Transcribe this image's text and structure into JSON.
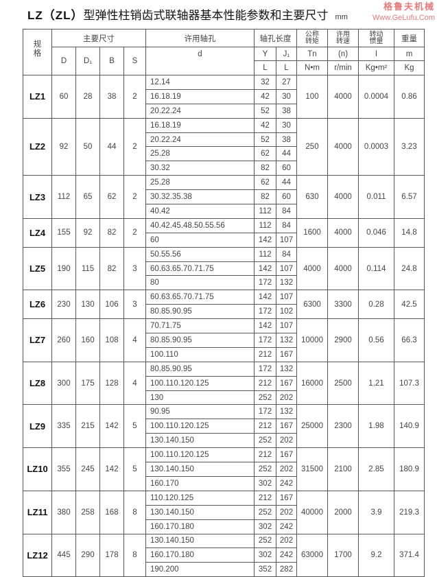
{
  "title": {
    "prefix": "LZ（ZL）",
    "main": "型弹性柱销齿式联轴器基本性能参数和主要尺寸",
    "unit": "mm"
  },
  "header": {
    "model": "规格",
    "main_dims": "主要尺寸",
    "bore": "许用轴孔",
    "bore_length": "轴孔长度",
    "torque": "公称转矩",
    "speed": "许用转速",
    "inertia": "转动惯量",
    "weight": "重量",
    "D": "D",
    "D1": "D₁",
    "B": "B",
    "S": "S",
    "d": "d",
    "Y": "Y",
    "J1": "J₁",
    "L_Y": "L",
    "L_J": "L",
    "Tn": "Tn",
    "n": "(n)",
    "I": "I",
    "m": "m",
    "Tn_unit": "N•m",
    "n_unit": "r/min",
    "I_unit": "Kg•m²",
    "m_unit": "Kg"
  },
  "rows": [
    {
      "model": "LZ1",
      "D": "60",
      "D1": "28",
      "B": "38",
      "S": "2",
      "Tn": "100",
      "n": "4000",
      "I": "0.0004",
      "m": "0.86",
      "bores": [
        [
          "12.14",
          "32",
          "27"
        ],
        [
          "16.18.19",
          "42",
          "30"
        ],
        [
          "20.22.24",
          "52",
          "38"
        ]
      ]
    },
    {
      "model": "LZ2",
      "D": "92",
      "D1": "50",
      "B": "44",
      "S": "2",
      "Tn": "250",
      "n": "4000",
      "I": "0.0003",
      "m": "3.23",
      "bores": [
        [
          "16.18.19",
          "42",
          "30"
        ],
        [
          "20.22.24",
          "52",
          "38"
        ],
        [
          "25.28",
          "62",
          "44"
        ],
        [
          "30.32",
          "82",
          "60"
        ]
      ]
    },
    {
      "model": "LZ3",
      "D": "112",
      "D1": "65",
      "B": "62",
      "S": "2",
      "Tn": "630",
      "n": "4000",
      "I": "0.011",
      "m": "6.57",
      "bores": [
        [
          "25.28",
          "62",
          "44"
        ],
        [
          "30.32.35.38",
          "82",
          "60"
        ],
        [
          "40.42",
          "112",
          "84"
        ]
      ]
    },
    {
      "model": "LZ4",
      "D": "155",
      "D1": "92",
      "B": "82",
      "S": "2",
      "Tn": "1600",
      "n": "4000",
      "I": "0.046",
      "m": "14.8",
      "bores": [
        [
          "40.42.45.48.50.55.56",
          "112",
          "84"
        ],
        [
          "60",
          "142",
          "107"
        ]
      ]
    },
    {
      "model": "LZ5",
      "D": "190",
      "D1": "115",
      "B": "82",
      "S": "3",
      "Tn": "4000",
      "n": "4000",
      "I": "0.114",
      "m": "24.8",
      "bores": [
        [
          "50.55.56",
          "112",
          "84"
        ],
        [
          "60.63.65.70.71.75",
          "142",
          "107"
        ],
        [
          "80",
          "172",
          "132"
        ]
      ]
    },
    {
      "model": "LZ6",
      "D": "230",
      "D1": "130",
      "B": "106",
      "S": "3",
      "Tn": "6300",
      "n": "3300",
      "I": "0.28",
      "m": "42.5",
      "bores": [
        [
          "60.63.65.70.71.75",
          "142",
          "107"
        ],
        [
          "80.85.90.95",
          "172",
          "102"
        ]
      ]
    },
    {
      "model": "LZ7",
      "D": "260",
      "D1": "160",
      "B": "108",
      "S": "4",
      "Tn": "10000",
      "n": "2900",
      "I": "0.56",
      "m": "66.3",
      "bores": [
        [
          "70.71.75",
          "142",
          "107"
        ],
        [
          "80.85.90.95",
          "172",
          "132"
        ],
        [
          "100.110",
          "212",
          "167"
        ]
      ]
    },
    {
      "model": "LZ8",
      "D": "300",
      "D1": "175",
      "B": "128",
      "S": "4",
      "Tn": "16000",
      "n": "2500",
      "I": "1.21",
      "m": "107.3",
      "bores": [
        [
          "80.85.90.95",
          "172",
          "132"
        ],
        [
          "100.110.120.125",
          "212",
          "167"
        ],
        [
          "130",
          "252",
          "202"
        ]
      ]
    },
    {
      "model": "LZ9",
      "D": "335",
      "D1": "215",
      "B": "142",
      "S": "5",
      "Tn": "25000",
      "n": "2300",
      "I": "1.98",
      "m": "140.9",
      "bores": [
        [
          "90.95",
          "172",
          "132"
        ],
        [
          "100.110.120.125",
          "212",
          "167"
        ],
        [
          "130.140.150",
          "252",
          "202"
        ]
      ]
    },
    {
      "model": "LZ10",
      "D": "355",
      "D1": "245",
      "B": "142",
      "S": "5",
      "Tn": "31500",
      "n": "2100",
      "I": "2.85",
      "m": "180.9",
      "bores": [
        [
          "100.110.120.125",
          "212",
          "167"
        ],
        [
          "130.140.150",
          "252",
          "202"
        ],
        [
          "160.170",
          "302",
          "242"
        ]
      ]
    },
    {
      "model": "LZ11",
      "D": "380",
      "D1": "258",
      "B": "168",
      "S": "8",
      "Tn": "40000",
      "n": "2000",
      "I": "3.9",
      "m": "219.3",
      "bores": [
        [
          "110.120.125",
          "212",
          "167"
        ],
        [
          "130.140.150",
          "252",
          "202"
        ],
        [
          "160.170.180",
          "302",
          "242"
        ]
      ]
    },
    {
      "model": "LZ12",
      "D": "445",
      "D1": "290",
      "B": "178",
      "S": "8",
      "Tn": "63000",
      "n": "1700",
      "I": "9.2",
      "m": "371.4",
      "bores": [
        [
          "130.140.150",
          "252",
          "202"
        ],
        [
          "160.170.180",
          "302",
          "242"
        ],
        [
          "190.200",
          "352",
          "282"
        ]
      ]
    }
  ],
  "watermark": {
    "cn": "格鲁夫机械",
    "en": "Www.GeLufu.Com"
  }
}
